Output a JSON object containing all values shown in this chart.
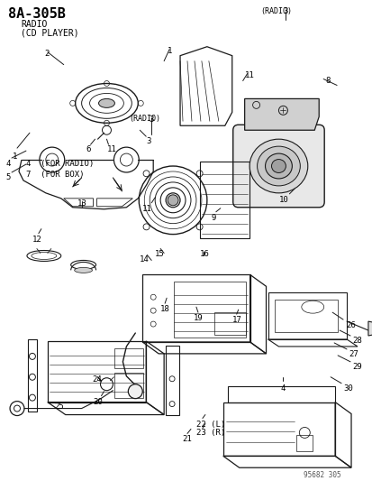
{
  "title": "8A-305B",
  "subtitle_line1": "RADIO",
  "subtitle_line2": "(CD PLAYER)",
  "bg_color": "#ffffff",
  "line_color": "#1a1a1a",
  "footer": "95682 305",
  "note1": "4  (FOR RADIO)",
  "note2": "7  (FOR BOX)",
  "fig_width": 4.14,
  "fig_height": 5.33,
  "dpi": 100
}
